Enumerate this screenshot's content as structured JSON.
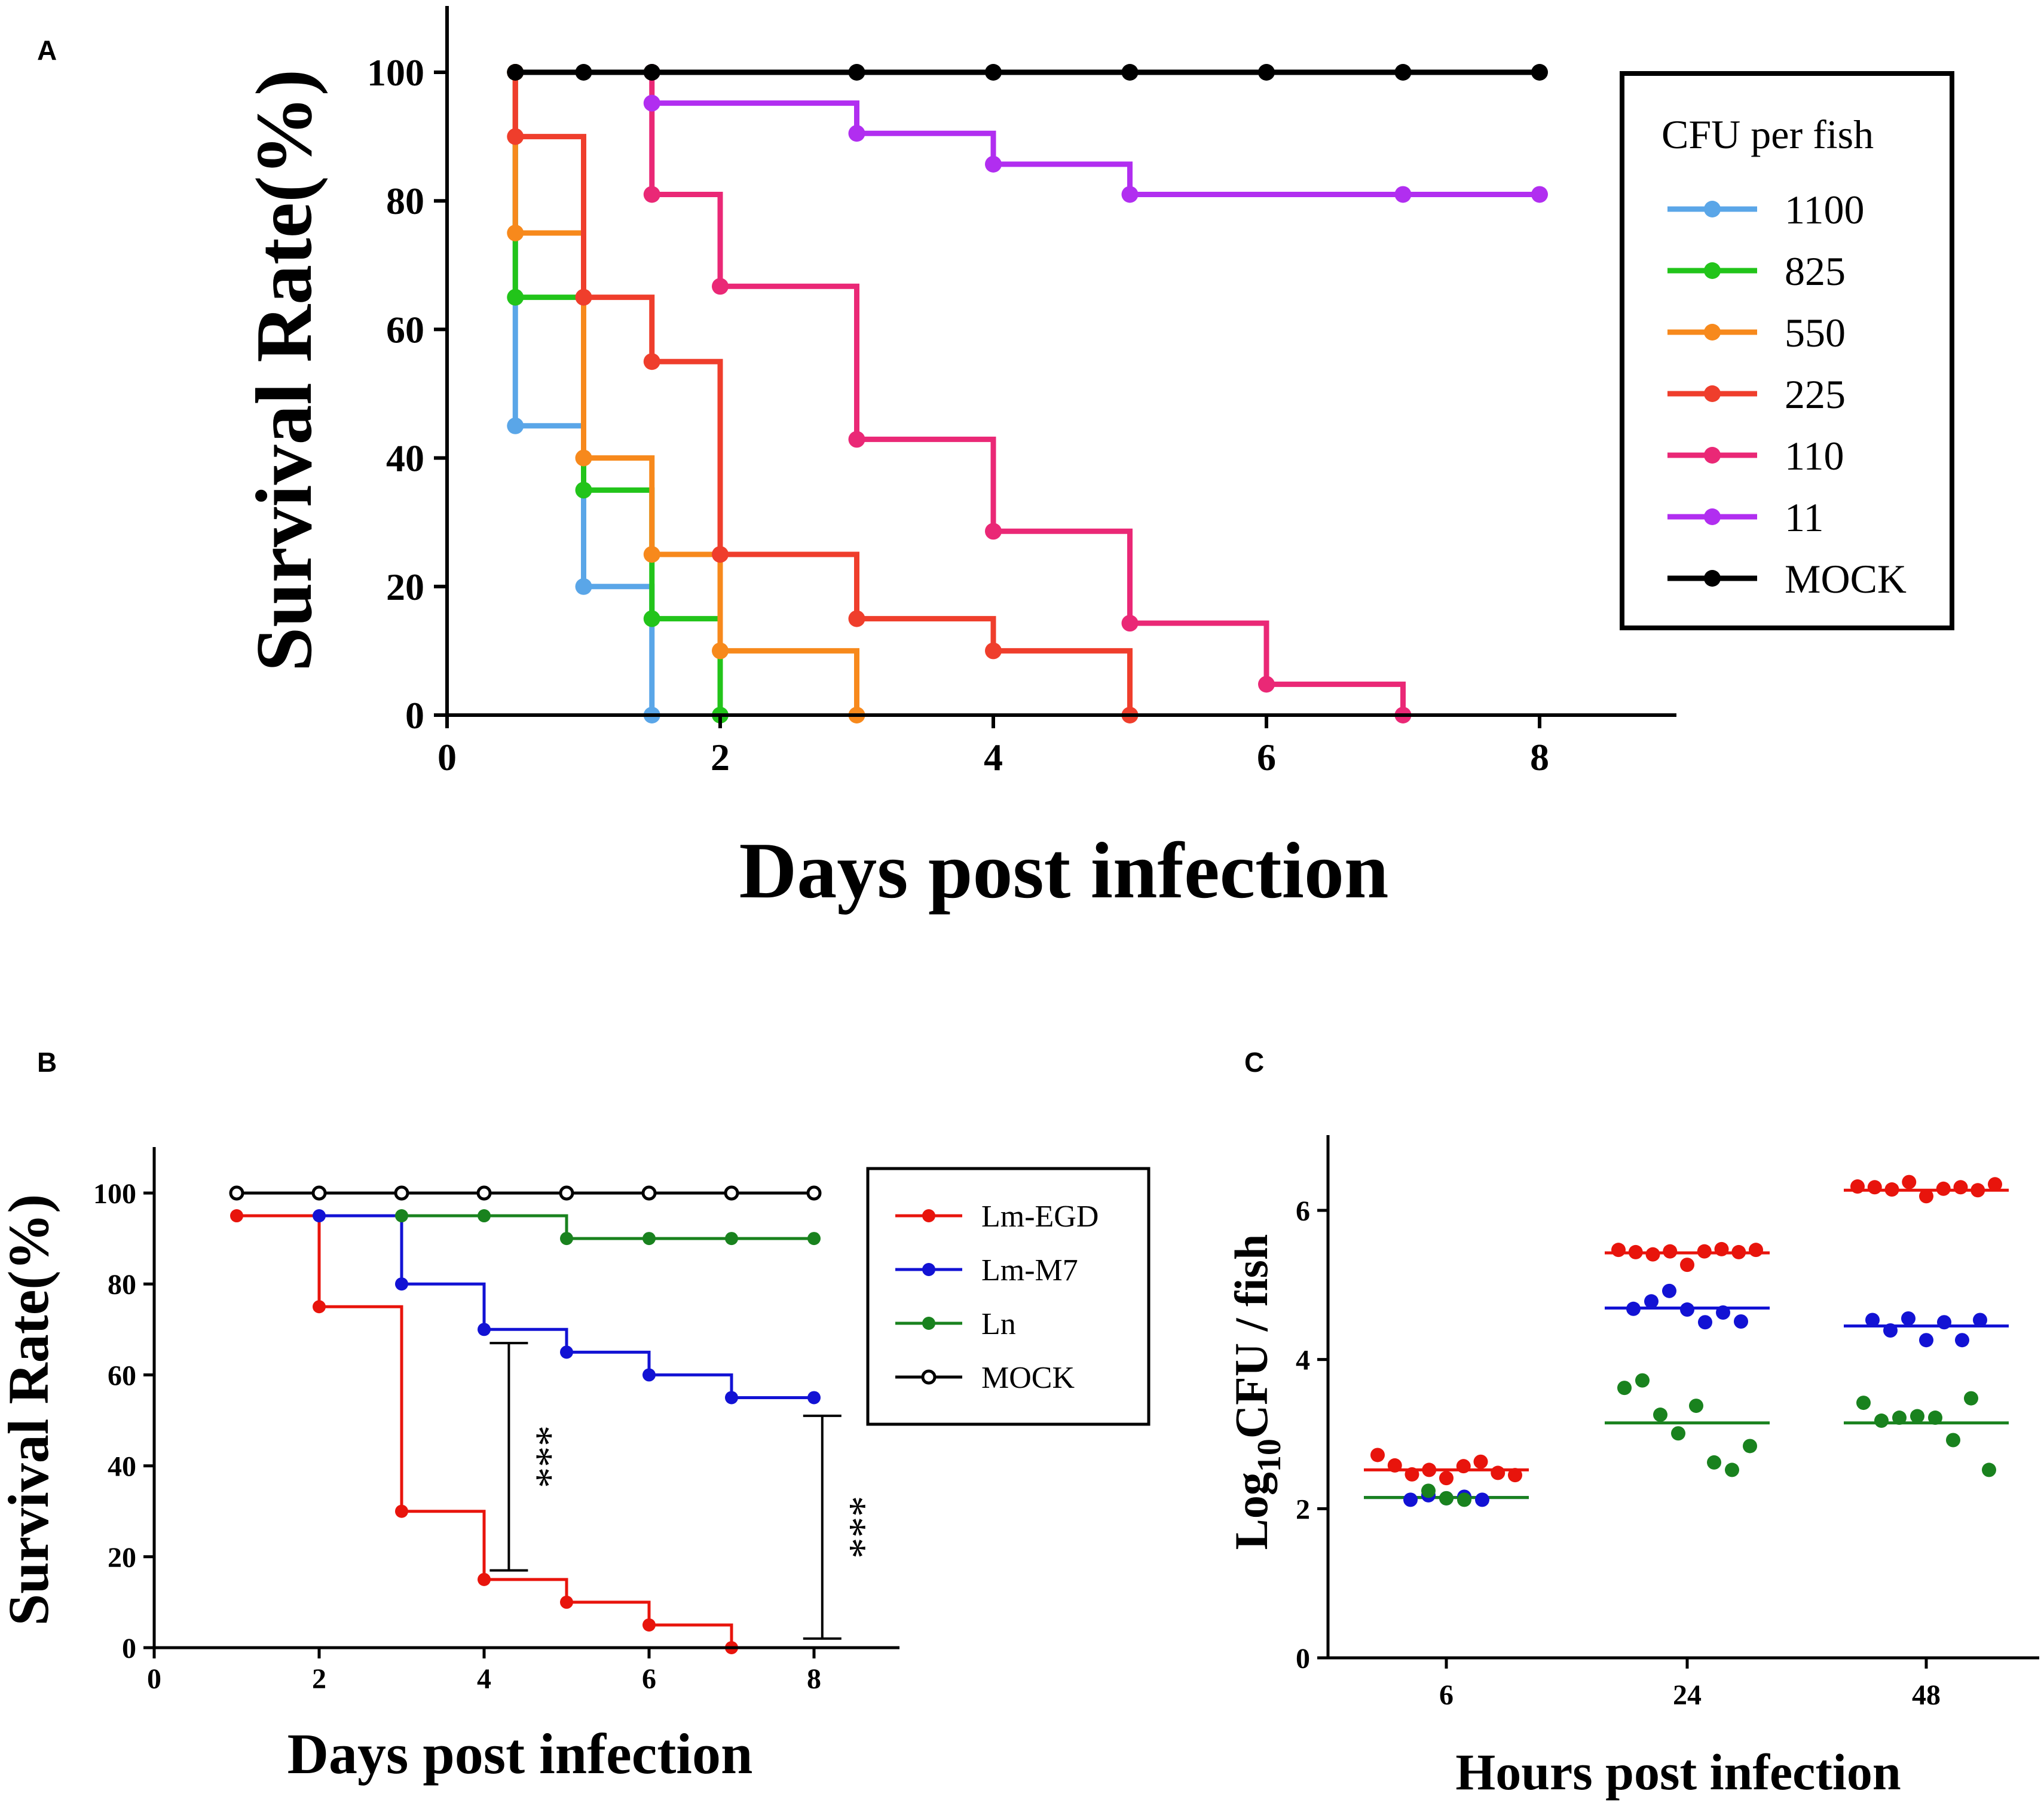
{
  "chart_data": [
    {
      "id": "A",
      "panel_label": "A",
      "type": "line",
      "subtype": "step-survival",
      "title": "",
      "xlabel": "Days post infection",
      "ylabel": "Survival Rate(%)",
      "xlim": [
        0,
        9
      ],
      "ylim": [
        0,
        110
      ],
      "xticks": [
        0,
        2,
        4,
        6,
        8
      ],
      "yticks": [
        0,
        20,
        40,
        60,
        80,
        100
      ],
      "grid": false,
      "legend": {
        "title": "CFU per fish",
        "position": "right"
      },
      "series": [
        {
          "name": "1100",
          "color": "#5aa6e8",
          "x": [
            0.5,
            0.5,
            1,
            1.5
          ],
          "y": [
            100,
            45,
            20,
            0
          ]
        },
        {
          "name": "825",
          "color": "#22c41a",
          "x": [
            0.5,
            0.5,
            1,
            1.5,
            2
          ],
          "y": [
            100,
            65,
            35,
            15,
            0
          ]
        },
        {
          "name": "550",
          "color": "#f7891c",
          "x": [
            0.5,
            0.5,
            1,
            1.5,
            2,
            3
          ],
          "y": [
            100,
            75,
            40,
            25,
            10,
            0
          ]
        },
        {
          "name": "225",
          "color": "#ef3e2c",
          "x": [
            0.5,
            0.5,
            1,
            1.5,
            2,
            3,
            4,
            5
          ],
          "y": [
            100,
            90,
            65,
            55,
            25,
            15,
            10,
            0
          ]
        },
        {
          "name": "110",
          "color": "#ea2876",
          "x": [
            1.5,
            1.5,
            2,
            3,
            4,
            5,
            6,
            7
          ],
          "y": [
            100,
            81,
            66.7,
            42.9,
            28.6,
            14.3,
            4.8,
            0
          ]
        },
        {
          "name": "11",
          "color": "#b12ef0",
          "x": [
            1.5,
            3,
            4,
            5,
            7,
            8
          ],
          "y": [
            95.2,
            90.5,
            85.7,
            81,
            81,
            81
          ]
        },
        {
          "name": "MOCK",
          "color": "#000000",
          "x": [
            0.5,
            1,
            1.5,
            3,
            4,
            5,
            6,
            7,
            8
          ],
          "y": [
            100,
            100,
            100,
            100,
            100,
            100,
            100,
            100,
            100
          ]
        }
      ]
    },
    {
      "id": "B",
      "panel_label": "B",
      "type": "line",
      "subtype": "step-survival",
      "title": "",
      "xlabel": "Days post infection",
      "ylabel": "Survival Rate(%)",
      "xlim": [
        0,
        9
      ],
      "ylim": [
        0,
        110
      ],
      "xticks": [
        0,
        2,
        4,
        6,
        8
      ],
      "yticks": [
        0,
        20,
        40,
        60,
        80,
        100
      ],
      "grid": false,
      "legend": {
        "position": "right"
      },
      "series": [
        {
          "name": "Lm-EGD",
          "color": "#e8140c",
          "open": false,
          "x": [
            1,
            2,
            3,
            4,
            5,
            6,
            7
          ],
          "y": [
            95,
            75,
            30,
            15,
            10,
            5,
            0
          ]
        },
        {
          "name": "Lm-M7",
          "color": "#1212d4",
          "open": false,
          "x": [
            2,
            3,
            4,
            5,
            6,
            7,
            8
          ],
          "y": [
            95,
            80,
            70,
            65,
            60,
            55,
            55
          ]
        },
        {
          "name": "Ln",
          "color": "#19821e",
          "open": false,
          "x": [
            3,
            4,
            5,
            6,
            7,
            8
          ],
          "y": [
            95,
            95,
            90,
            90,
            90,
            90
          ]
        },
        {
          "name": "MOCK",
          "color": "#000000",
          "open": true,
          "x": [
            1,
            2,
            3,
            4,
            5,
            6,
            7,
            8
          ],
          "y": [
            100,
            100,
            100,
            100,
            100,
            100,
            100,
            100
          ]
        }
      ],
      "annotations": [
        {
          "text": "***",
          "x": 4.3,
          "y_low": 17,
          "y_high": 67
        },
        {
          "text": "***",
          "x": 8.1,
          "y_low": 2,
          "y_high": 51
        }
      ]
    },
    {
      "id": "C",
      "panel_label": "C",
      "type": "scatter",
      "subtype": "dot-plot-with-mean",
      "title": "",
      "xlabel": "Hours post infection",
      "ylabel_main": "Log",
      "ylabel_sub": "10",
      "ylabel_rest": "CFU / fish",
      "categories": [
        "6",
        "24",
        "48"
      ],
      "ylim": [
        0,
        7
      ],
      "yticks": [
        0,
        2,
        4,
        6
      ],
      "grid": false,
      "series": [
        {
          "name": "Lm-EGD",
          "color": "#e8140c",
          "means": [
            2.52,
            5.43,
            6.27
          ],
          "points": [
            [
              2.72,
              2.58,
              2.46,
              2.52,
              2.41,
              2.57,
              2.63,
              2.48,
              2.45
            ],
            [
              5.47,
              5.44,
              5.41,
              5.45,
              5.27,
              5.45,
              5.48,
              5.44,
              5.47
            ],
            [
              6.32,
              6.31,
              6.28,
              6.38,
              6.19,
              6.29,
              6.31,
              6.27,
              6.35
            ]
          ]
        },
        {
          "name": "Lm-M7",
          "color": "#1212d4",
          "means": [
            2.15,
            4.69,
            4.45
          ],
          "points": [
            [
              2.12,
              2.18,
              2.14,
              2.16,
              2.12
            ],
            [
              4.68,
              4.78,
              4.92,
              4.67,
              4.5,
              4.63,
              4.51
            ],
            [
              4.53,
              4.39,
              4.55,
              4.26,
              4.5,
              4.26,
              4.53
            ]
          ]
        },
        {
          "name": "Ln",
          "color": "#19821e",
          "means": [
            2.15,
            3.15,
            3.15
          ],
          "points": [
            [
              2.24,
              2.14,
              2.12
            ],
            [
              3.62,
              3.72,
              3.26,
              3.01,
              3.38,
              2.62,
              2.52,
              2.84
            ],
            [
              3.42,
              3.18,
              3.22,
              3.24,
              3.22,
              2.92,
              3.48,
              2.52
            ]
          ]
        }
      ]
    }
  ]
}
